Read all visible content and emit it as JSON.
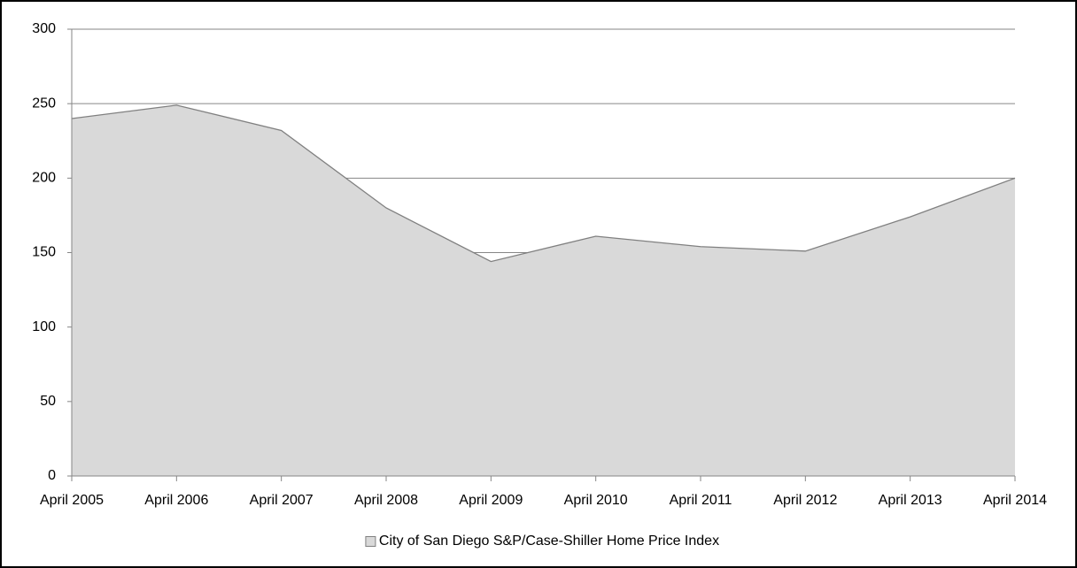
{
  "chart_data": {
    "type": "area",
    "categories": [
      "April 2005",
      "April 2006",
      "April 2007",
      "April 2008",
      "April 2009",
      "April 2010",
      "April 2011",
      "April 2012",
      "April 2013",
      "April 2014"
    ],
    "series": [
      {
        "name": "City of San Diego S&P/Case-Shiller Home Price Index",
        "color": "#d9d9d9",
        "values": [
          240,
          249,
          232,
          180,
          144,
          161,
          154,
          151,
          174,
          200
        ]
      }
    ],
    "ylim": [
      0,
      300
    ],
    "yticks": [
      0,
      50,
      100,
      150,
      200,
      250,
      300
    ],
    "grid": true,
    "legend": "bottom"
  }
}
